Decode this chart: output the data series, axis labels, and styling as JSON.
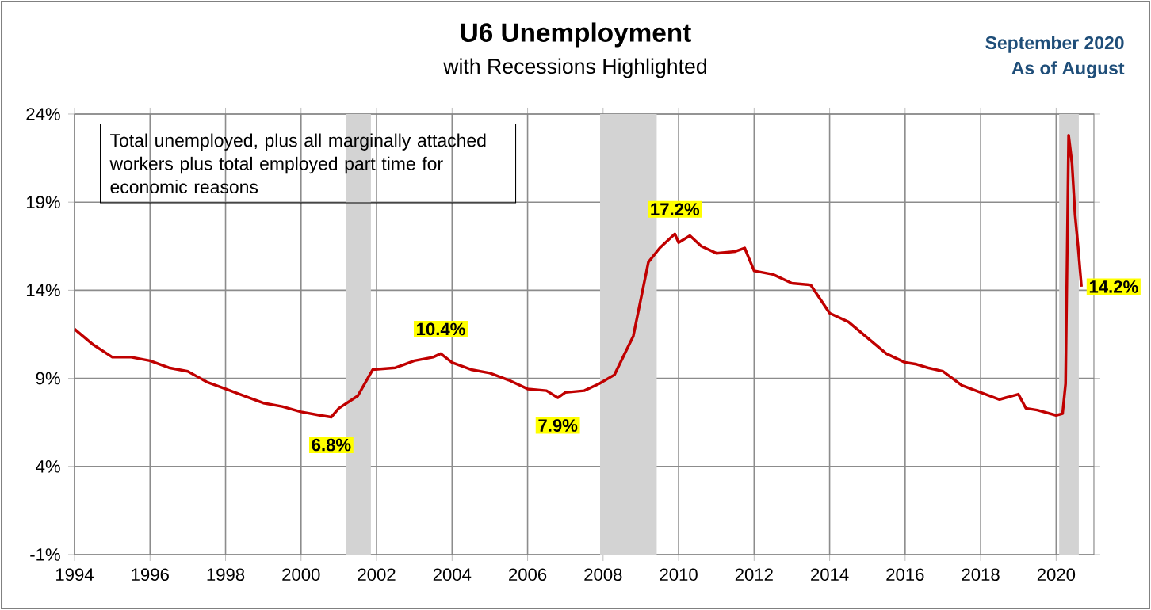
{
  "chart_data": {
    "type": "line",
    "title": "U6 Unemployment",
    "subtitle": "with Recessions Highlighted",
    "x": [
      1994.0,
      1994.5,
      1995.0,
      1995.5,
      1996.0,
      1996.5,
      1997.0,
      1997.5,
      1998.0,
      1998.5,
      1999.0,
      1999.5,
      2000.0,
      2000.5,
      2000.8,
      2001.0,
      2001.5,
      2001.9,
      2002.5,
      2003.0,
      2003.5,
      2003.7,
      2004.0,
      2004.5,
      2005.0,
      2005.5,
      2006.0,
      2006.5,
      2006.8,
      2007.0,
      2007.5,
      2007.9,
      2008.3,
      2008.8,
      2009.2,
      2009.5,
      2009.9,
      2010.0,
      2010.3,
      2010.6,
      2011.0,
      2011.5,
      2011.75,
      2012.0,
      2012.5,
      2013.0,
      2013.5,
      2014.0,
      2014.5,
      2015.0,
      2015.5,
      2016.0,
      2016.3,
      2016.6,
      2017.0,
      2017.5,
      2018.0,
      2018.5,
      2019.0,
      2019.2,
      2019.5,
      2020.0,
      2020.17,
      2020.25,
      2020.33,
      2020.42,
      2020.5,
      2020.58,
      2020.67
    ],
    "series": [
      {
        "color": "#c00000",
        "values": [
          11.8,
          10.9,
          10.2,
          10.2,
          10.0,
          9.6,
          9.4,
          8.8,
          8.4,
          8.0,
          7.6,
          7.4,
          7.1,
          6.9,
          6.8,
          7.3,
          8.0,
          9.5,
          9.6,
          10.0,
          10.2,
          10.4,
          9.9,
          9.5,
          9.3,
          8.9,
          8.4,
          8.3,
          7.9,
          8.2,
          8.3,
          8.7,
          9.2,
          11.4,
          15.6,
          16.4,
          17.2,
          16.7,
          17.1,
          16.5,
          16.1,
          16.2,
          16.4,
          15.1,
          14.9,
          14.4,
          14.3,
          12.7,
          12.2,
          11.3,
          10.4,
          9.9,
          9.8,
          9.6,
          9.4,
          8.6,
          8.2,
          7.8,
          8.1,
          7.3,
          7.2,
          6.9,
          7.0,
          8.7,
          22.8,
          21.2,
          18.3,
          16.5,
          14.2
        ]
      }
    ],
    "xlim": [
      1994,
      2021
    ],
    "xticks": [
      1994,
      1996,
      1998,
      2000,
      2002,
      2004,
      2006,
      2008,
      2010,
      2012,
      2014,
      2016,
      2018,
      2020
    ],
    "ylim": [
      -1,
      24
    ],
    "yticks": [
      {
        "value": -1,
        "label": "-1%"
      },
      {
        "value": 4,
        "label": "4%"
      },
      {
        "value": 9,
        "label": "9%"
      },
      {
        "value": 14,
        "label": "14%"
      },
      {
        "value": 19,
        "label": "19%"
      },
      {
        "value": 24,
        "label": "24%"
      }
    ],
    "grid": true,
    "bands": [
      {
        "axis": "x",
        "from": 2001.2,
        "to": 2001.85,
        "color": "#d3d3d3"
      },
      {
        "axis": "x",
        "from": 2007.92,
        "to": 2009.42,
        "color": "#d3d3d3"
      },
      {
        "axis": "x",
        "from": 2020.08,
        "to": 2020.6,
        "color": "#d3d3d3"
      }
    ],
    "annotations": [
      "Total unemployed, plus all marginally attached workers plus total employed part time for economic reasons",
      "September 2020",
      "As of August",
      {
        "text": "6.8%",
        "x": 2000.8,
        "y": 6.8
      },
      {
        "text": "10.4%",
        "x": 2003.7,
        "y": 10.4
      },
      {
        "text": "7.9%",
        "x": 2006.8,
        "y": 7.9
      },
      {
        "text": "17.2%",
        "x": 2009.9,
        "y": 17.2
      },
      {
        "text": "14.2%",
        "x": 2020.67,
        "y": 14.2
      }
    ]
  }
}
